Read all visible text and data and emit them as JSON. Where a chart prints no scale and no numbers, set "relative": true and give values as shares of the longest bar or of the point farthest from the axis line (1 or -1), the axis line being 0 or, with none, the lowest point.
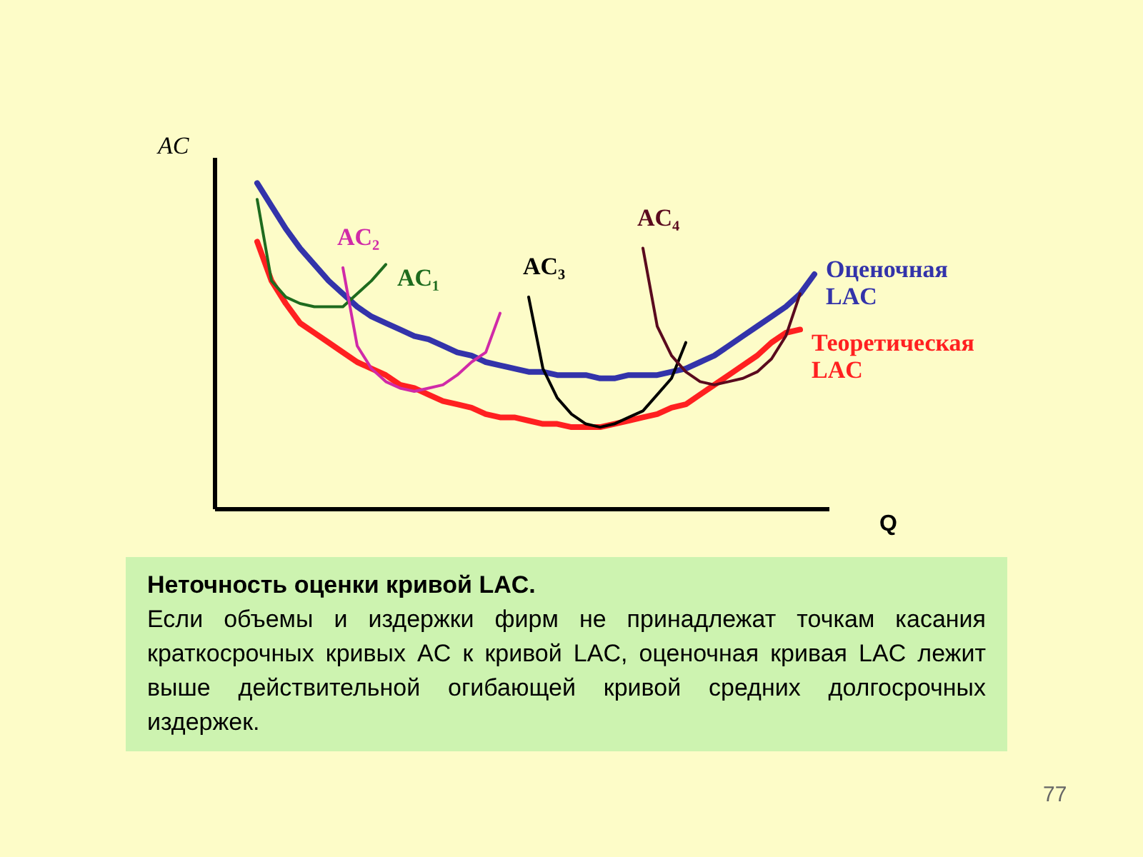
{
  "chart_data": {
    "type": "line",
    "relative": true,
    "xlabel": "Q",
    "ylabel": "AC",
    "categories": [
      null,
      null,
      null,
      null,
      null,
      null,
      null,
      null,
      null,
      null,
      null,
      null,
      null,
      null,
      null,
      null,
      null,
      null,
      null,
      null,
      null,
      null,
      null,
      null,
      null,
      null,
      null,
      null,
      null,
      null,
      null,
      null,
      null,
      null,
      null,
      null,
      null,
      null,
      null,
      null,
      null,
      null,
      null,
      null
    ],
    "series": [
      {
        "name": "Оценочная LAC",
        "color": "#3333aa",
        "values": [
          null,
          null,
          null,
          1.0,
          0.93,
          0.86,
          0.8,
          0.75,
          0.7,
          0.66,
          0.62,
          0.59,
          0.57,
          0.55,
          0.53,
          0.52,
          0.5,
          0.48,
          0.47,
          0.45,
          0.44,
          0.43,
          0.42,
          0.42,
          0.41,
          0.41,
          0.41,
          0.4,
          0.4,
          0.41,
          0.41,
          0.41,
          0.42,
          0.43,
          0.45,
          0.47,
          0.5,
          0.53,
          0.56,
          0.59,
          0.62,
          0.66,
          0.72,
          null
        ]
      },
      {
        "name": "Теоретическая LAC",
        "color": "#ff2020",
        "values": [
          null,
          null,
          null,
          0.82,
          0.7,
          0.63,
          0.57,
          0.54,
          0.51,
          0.48,
          0.45,
          0.43,
          0.41,
          0.38,
          0.37,
          0.35,
          0.33,
          0.32,
          0.31,
          0.29,
          0.28,
          0.28,
          0.27,
          0.26,
          0.26,
          0.25,
          0.25,
          0.25,
          0.26,
          0.27,
          0.28,
          0.29,
          0.31,
          0.32,
          0.35,
          0.38,
          0.41,
          0.44,
          0.47,
          0.51,
          0.54,
          0.55,
          null,
          null
        ]
      },
      {
        "name": "AC₁",
        "color": "#1e6b1e",
        "values": [
          null,
          null,
          null,
          0.95,
          0.7,
          0.65,
          0.63,
          0.62,
          0.62,
          0.62,
          0.66,
          0.7,
          0.75,
          null,
          null,
          null,
          null,
          null,
          null,
          null,
          null,
          null,
          null,
          null,
          null,
          null,
          null,
          null,
          null,
          null,
          null,
          null,
          null,
          null,
          null,
          null,
          null,
          null,
          null,
          null,
          null,
          null,
          null,
          null
        ]
      },
      {
        "name": "AC₂",
        "color": "#d02aa8",
        "values": [
          null,
          null,
          null,
          null,
          null,
          null,
          null,
          null,
          null,
          0.74,
          0.5,
          0.43,
          0.39,
          0.37,
          0.36,
          0.37,
          0.38,
          0.41,
          0.45,
          0.48,
          0.6,
          null,
          null,
          null,
          null,
          null,
          null,
          null,
          null,
          null,
          null,
          null,
          null,
          null,
          null,
          null,
          null,
          null,
          null,
          null,
          null,
          null,
          null,
          null
        ]
      },
      {
        "name": "AC₃",
        "color": "#000000",
        "values": [
          null,
          null,
          null,
          null,
          null,
          null,
          null,
          null,
          null,
          null,
          null,
          null,
          null,
          null,
          null,
          null,
          null,
          null,
          null,
          null,
          null,
          null,
          0.65,
          0.43,
          0.34,
          0.29,
          0.26,
          0.25,
          0.26,
          0.28,
          0.3,
          0.35,
          0.4,
          0.51,
          null,
          null,
          null,
          null,
          null,
          null,
          null,
          null,
          null,
          null
        ]
      },
      {
        "name": "AC₄",
        "color": "#5a0a1e",
        "values": [
          null,
          null,
          null,
          null,
          null,
          null,
          null,
          null,
          null,
          null,
          null,
          null,
          null,
          null,
          null,
          null,
          null,
          null,
          null,
          null,
          null,
          null,
          null,
          null,
          null,
          null,
          null,
          null,
          null,
          null,
          0.8,
          0.56,
          0.47,
          0.42,
          0.39,
          0.38,
          0.39,
          0.4,
          0.42,
          0.46,
          0.53,
          0.66,
          null,
          null
        ]
      }
    ],
    "annotations": [
      "Неточность оценки кривой LAC.",
      "Если объемы и издержки фирм не принадлежат точкам касания краткосрочных кривых AC к кривой LAC, оценочная кривая LAC лежит выше действительной огибающей кривой средних долгосрочных издержек.",
      "77"
    ]
  }
}
